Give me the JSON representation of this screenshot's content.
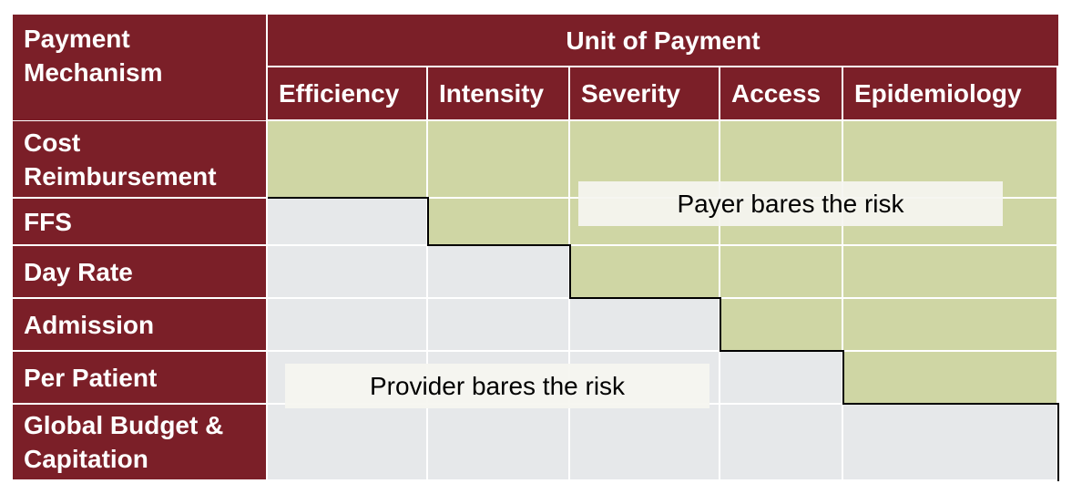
{
  "table": {
    "corner_label": "Payment Mechanism",
    "unit_title": "Unit of Payment",
    "columns": [
      "Efficiency",
      "Intensity",
      "Severity",
      "Access",
      "Epidemiology"
    ],
    "rows": [
      {
        "label": "Cost Reimbursement",
        "payer_risk_from_column": 0
      },
      {
        "label": "FFS",
        "payer_risk_from_column": 1
      },
      {
        "label": "Day Rate",
        "payer_risk_from_column": 2
      },
      {
        "label": "Admission",
        "payer_risk_from_column": 3
      },
      {
        "label": "Per Patient",
        "payer_risk_from_column": 4
      },
      {
        "label": "Global Budget & Capitation",
        "payer_risk_from_column": 5
      }
    ]
  },
  "labels": {
    "payer": "Payer bares the risk",
    "provider": "Provider bares the risk"
  },
  "colors": {
    "header_bg": "#7b1f28",
    "payer_risk": "#cfd6a4",
    "provider_risk": "#e6e8ea"
  }
}
